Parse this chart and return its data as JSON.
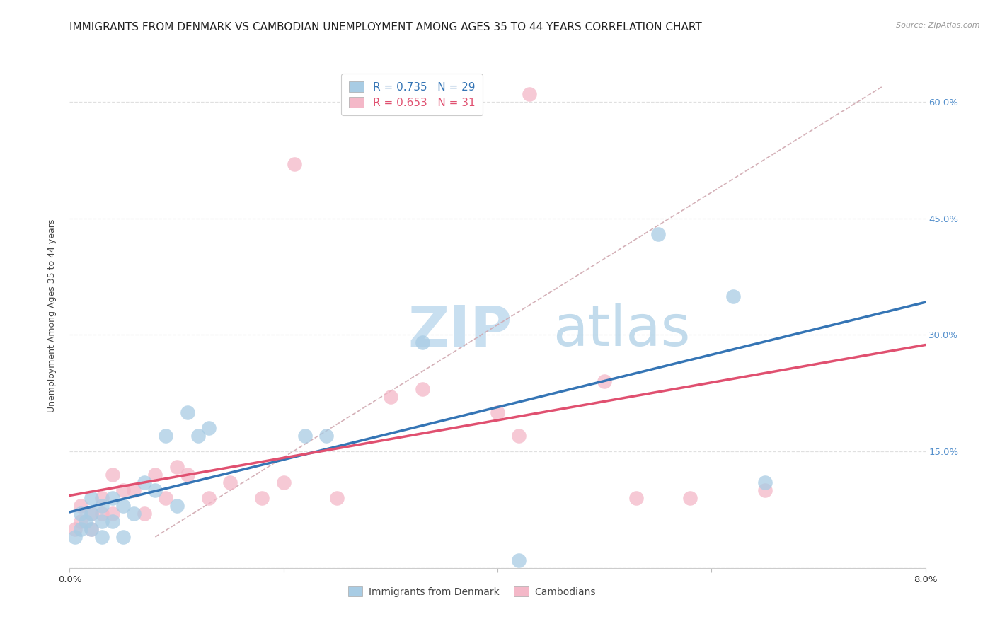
{
  "title": "IMMIGRANTS FROM DENMARK VS CAMBODIAN UNEMPLOYMENT AMONG AGES 35 TO 44 YEARS CORRELATION CHART",
  "source": "Source: ZipAtlas.com",
  "ylabel": "Unemployment Among Ages 35 to 44 years",
  "legend_label1": "Immigrants from Denmark",
  "legend_label2": "Cambodians",
  "r1": "0.735",
  "n1": "29",
  "r2": "0.653",
  "n2": "31",
  "color1": "#a8cce4",
  "color2": "#f4b8c8",
  "line_color1": "#3575b5",
  "line_color2": "#e05070",
  "dashed_line_color": "#d0a8b0",
  "xlim": [
    0.0,
    0.08
  ],
  "ylim": [
    0.0,
    0.65
  ],
  "yticks": [
    0.0,
    0.15,
    0.3,
    0.45,
    0.6
  ],
  "ytick_labels": [
    "",
    "15.0%",
    "30.0%",
    "45.0%",
    "60.0%"
  ],
  "xticks": [
    0.0,
    0.02,
    0.04,
    0.06,
    0.08
  ],
  "xtick_labels": [
    "0.0%",
    "",
    "",
    "",
    "8.0%"
  ],
  "right_tick_color": "#5590cc",
  "background_color": "#ffffff",
  "blue_x": [
    0.0005,
    0.001,
    0.001,
    0.0015,
    0.002,
    0.002,
    0.002,
    0.003,
    0.003,
    0.003,
    0.004,
    0.004,
    0.005,
    0.005,
    0.006,
    0.007,
    0.008,
    0.009,
    0.01,
    0.011,
    0.012,
    0.013,
    0.022,
    0.024,
    0.033,
    0.042,
    0.055,
    0.062,
    0.065
  ],
  "blue_y": [
    0.04,
    0.05,
    0.07,
    0.06,
    0.05,
    0.07,
    0.09,
    0.04,
    0.06,
    0.08,
    0.06,
    0.09,
    0.04,
    0.08,
    0.07,
    0.11,
    0.1,
    0.17,
    0.08,
    0.2,
    0.17,
    0.18,
    0.17,
    0.17,
    0.29,
    0.01,
    0.43,
    0.35,
    0.11
  ],
  "pink_x": [
    0.0005,
    0.001,
    0.001,
    0.002,
    0.002,
    0.003,
    0.003,
    0.004,
    0.004,
    0.005,
    0.006,
    0.007,
    0.008,
    0.009,
    0.01,
    0.011,
    0.013,
    0.015,
    0.018,
    0.02,
    0.021,
    0.025,
    0.03,
    0.033,
    0.04,
    0.042,
    0.043,
    0.05,
    0.053,
    0.058,
    0.065
  ],
  "pink_y": [
    0.05,
    0.06,
    0.08,
    0.05,
    0.07,
    0.07,
    0.09,
    0.07,
    0.12,
    0.1,
    0.1,
    0.07,
    0.12,
    0.09,
    0.13,
    0.12,
    0.09,
    0.11,
    0.09,
    0.11,
    0.52,
    0.09,
    0.22,
    0.23,
    0.2,
    0.17,
    0.61,
    0.24,
    0.09,
    0.09,
    0.1
  ],
  "title_fontsize": 11,
  "axis_label_fontsize": 9,
  "tick_fontsize": 9.5
}
